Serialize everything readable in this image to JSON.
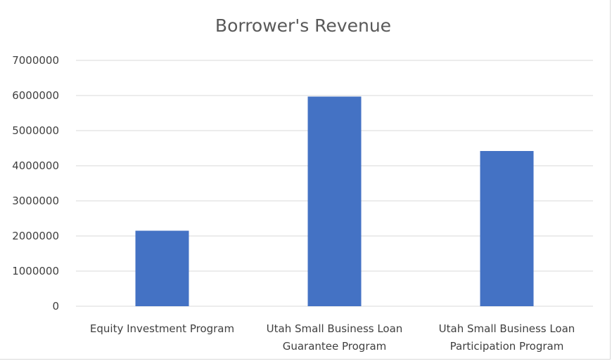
{
  "chart_data": {
    "type": "bar",
    "title": "Borrower's Revenue",
    "xlabel": "",
    "ylabel": "",
    "categories": [
      [
        "Equity Investment Program"
      ],
      [
        "Utah Small Business Loan",
        "Guarantee Program"
      ],
      [
        "Utah Small Business Loan",
        "Participation Program"
      ]
    ],
    "values": [
      2150000,
      5970000,
      4420000
    ],
    "ylim": [
      0,
      7000000
    ],
    "yticks": [
      "0",
      "1000000",
      "2000000",
      "3000000",
      "4000000",
      "5000000",
      "6000000",
      "7000000"
    ],
    "grid": true,
    "legend": "none",
    "bar_color": "#4472c4"
  }
}
